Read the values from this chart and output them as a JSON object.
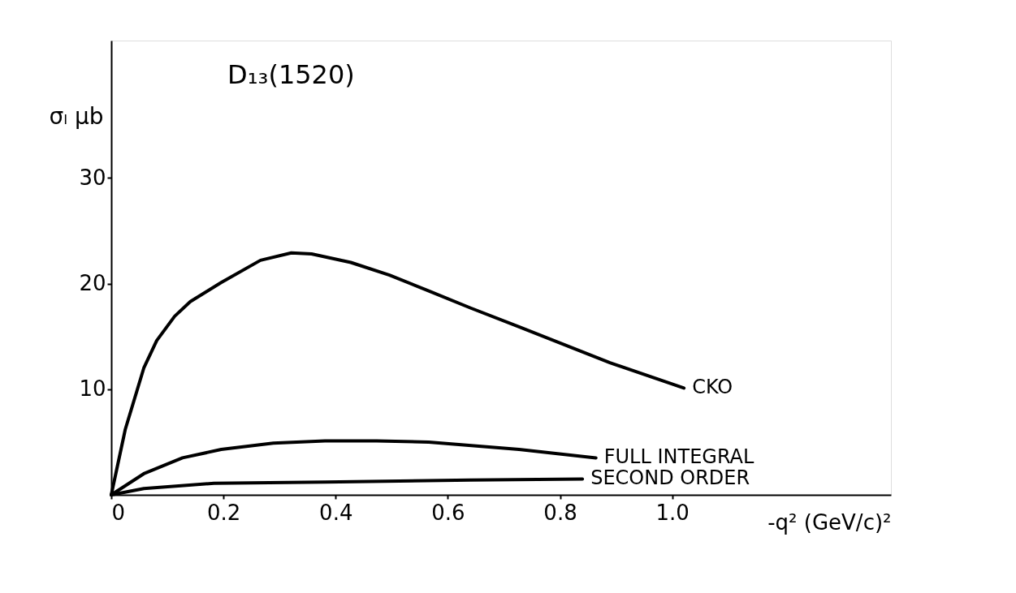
{
  "chart_data": {
    "type": "line",
    "title": "D₁₃(1520)",
    "xlabel": "-q² (GeV/c)²",
    "ylabel": "σₗ μb",
    "xlim": [
      0,
      1.39
    ],
    "ylim": [
      0,
      43
    ],
    "xticks": [
      0,
      0.2,
      0.4,
      0.6,
      0.8,
      {
        "value": 1.0,
        "label": "1.0"
      }
    ],
    "yticks": [
      10,
      20,
      30
    ],
    "grid": false,
    "legend": false,
    "line_style": "solid",
    "series": [
      {
        "name": "CKO",
        "color": "#000000",
        "x": [
          0,
          0.025,
          0.058,
          0.081,
          0.113,
          0.141,
          0.196,
          0.266,
          0.321,
          0.357,
          0.427,
          0.496,
          0.566,
          0.64,
          0.727,
          0.889,
          1.021
        ],
        "values": [
          0,
          6.2,
          12.0,
          14.6,
          16.9,
          18.3,
          20.1,
          22.2,
          22.9,
          22.8,
          22.0,
          20.8,
          19.3,
          17.7,
          15.9,
          12.5,
          10.1
        ]
      },
      {
        "name": "FULL INTEGRAL",
        "color": "#000000",
        "x": [
          0,
          0.058,
          0.127,
          0.196,
          0.289,
          0.381,
          0.473,
          0.566,
          0.727,
          0.864
        ],
        "values": [
          0,
          2.0,
          3.5,
          4.3,
          4.9,
          5.1,
          5.1,
          5.0,
          4.3,
          3.5
        ]
      },
      {
        "name": "SECOND ORDER",
        "color": "#000000",
        "x": [
          0,
          0.058,
          0.183,
          0.381,
          0.64,
          0.84
        ],
        "values": [
          0,
          0.6,
          1.1,
          1.2,
          1.4,
          1.5
        ]
      }
    ]
  }
}
